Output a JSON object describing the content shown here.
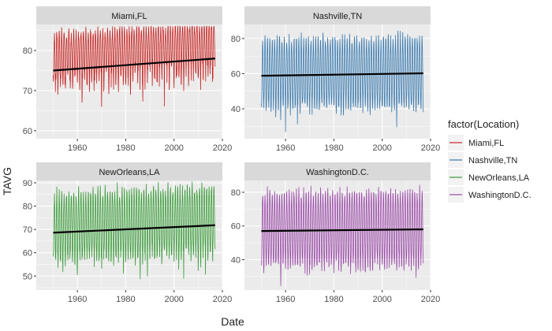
{
  "figure": {
    "ylabel": "TAVG",
    "xlabel": "Date",
    "legend_title": "factor(Location)"
  },
  "colors": {
    "panel_bg": "#ebebeb",
    "strip_bg": "#d9d9d9",
    "grid": "#ffffff",
    "trend": "#000000",
    "series": [
      "#c82523",
      "#3b7bb0",
      "#3a9c3a",
      "#9b4aa8"
    ]
  },
  "chart_data": [
    {
      "type": "line",
      "title": "Miami,FL",
      "x_range": [
        1950,
        2017
      ],
      "xlim": [
        1943,
        2020
      ],
      "ylim": [
        58,
        86.5
      ],
      "x_ticks": [
        1960,
        1980,
        2000,
        2020
      ],
      "y_ticks": [
        60,
        70,
        80
      ],
      "color": "#c82523",
      "seasonal_low": [
        63,
        68,
        75
      ],
      "seasonal_high": [
        83,
        85
      ],
      "trend": [
        [
          1950,
          75.0
        ],
        [
          2017,
          78.0
        ]
      ]
    },
    {
      "type": "line",
      "title": "Nashville,TN",
      "x_range": [
        1950,
        2017
      ],
      "xlim": [
        1943,
        2020
      ],
      "ylim": [
        23,
        88
      ],
      "x_ticks": [
        1960,
        1980,
        2000,
        2020
      ],
      "y_ticks": [
        40,
        60,
        80
      ],
      "color": "#3b7bb0",
      "seasonal_low": [
        26,
        36,
        44
      ],
      "seasonal_high": [
        76,
        83
      ],
      "trend": [
        [
          1950,
          58.8
        ],
        [
          2017,
          60.2
        ]
      ]
    },
    {
      "type": "line",
      "title": "NewOrleans,LA",
      "x_range": [
        1950,
        2017
      ],
      "xlim": [
        1943,
        2020
      ],
      "ylim": [
        44,
        91
      ],
      "x_ticks": [
        1960,
        1980,
        2000,
        2020
      ],
      "y_ticks": [
        50,
        60,
        70,
        80,
        90
      ],
      "color": "#3a9c3a",
      "seasonal_low": [
        46,
        53,
        60
      ],
      "seasonal_high": [
        83,
        88
      ],
      "trend": [
        [
          1950,
          68.6
        ],
        [
          2017,
          71.8
        ]
      ]
    },
    {
      "type": "line",
      "title": "WashingtonD.C.",
      "x_range": [
        1950,
        2017
      ],
      "xlim": [
        1943,
        2020
      ],
      "ylim": [
        22,
        87
      ],
      "x_ticks": [
        1960,
        1980,
        2000,
        2020
      ],
      "y_ticks": [
        40,
        60,
        80
      ],
      "color": "#9b4aa8",
      "seasonal_low": [
        25,
        32,
        40
      ],
      "seasonal_high": [
        76,
        83
      ],
      "trend": [
        [
          1950,
          57.0
        ],
        [
          2017,
          58.0
        ]
      ]
    }
  ]
}
